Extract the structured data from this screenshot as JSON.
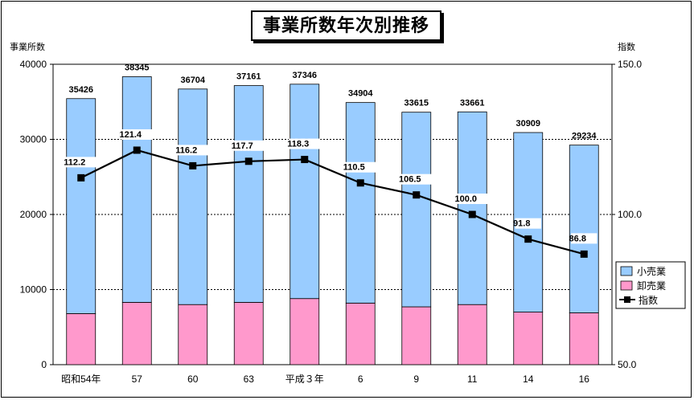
{
  "chart_data": {
    "type": "bar",
    "title": "事業所数年次別推移",
    "ylabel_left": "事業所数",
    "ylabel_right": "指数",
    "categories": [
      "昭和54年",
      "57",
      "60",
      "63",
      "平成３年",
      "6",
      "9",
      "11",
      "14",
      "16"
    ],
    "y_left_lim": [
      0,
      40000
    ],
    "y_left_ticks": [
      "0",
      "10000",
      "20000",
      "30000",
      "40000"
    ],
    "y_right_lim": [
      50,
      150
    ],
    "y_right_ticks": [
      "50.0",
      "100.0",
      "150.0"
    ],
    "gridlines": true,
    "legend_position": "right",
    "series": [
      {
        "name": "卸売業",
        "type": "bar",
        "color": "#ff99cc",
        "values": [
          6800,
          8300,
          8000,
          8300,
          8800,
          8200,
          7700,
          8000,
          7000,
          6900
        ]
      },
      {
        "name": "小売業",
        "type": "bar",
        "color": "#99ccff",
        "values": [
          28626,
          30045,
          28704,
          28861,
          28546,
          26704,
          25915,
          25661,
          23909,
          22334
        ]
      },
      {
        "name": "指数",
        "type": "line",
        "axis": "right",
        "color": "#000000",
        "values": [
          112.2,
          121.4,
          116.2,
          117.7,
          118.3,
          110.5,
          106.5,
          100.0,
          91.8,
          86.8
        ]
      }
    ],
    "totals": [
      35426,
      38345,
      36704,
      37161,
      37346,
      34904,
      33615,
      33661,
      30909,
      29234
    ],
    "total_labels": [
      "35426",
      "38345",
      "36704",
      "37161",
      "37346",
      "34904",
      "33615",
      "33661",
      "30909",
      "29234"
    ],
    "index_labels": [
      "112.2",
      "121.4",
      "116.2",
      "117.7",
      "118.3",
      "110.5",
      "106.5",
      "100.0",
      "91.8",
      "86.8"
    ]
  }
}
